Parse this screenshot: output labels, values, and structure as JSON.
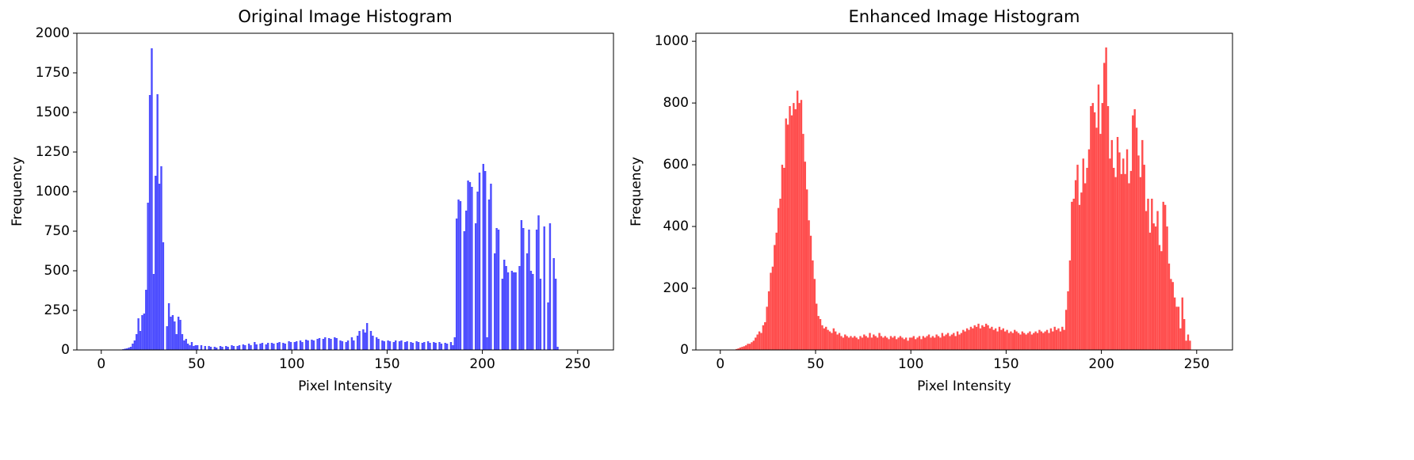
{
  "chart_data": [
    {
      "type": "histogram",
      "title": "Original Image Histogram",
      "xlabel": "Pixel Intensity",
      "ylabel": "Frequency",
      "color": "#4d4dff",
      "xlim": [
        -12.8,
        268.8
      ],
      "ylim": [
        0,
        2000
      ],
      "xticks": [
        0,
        50,
        100,
        150,
        200,
        250
      ],
      "yticks": [
        0,
        250,
        500,
        750,
        1000,
        1250,
        1500,
        1750,
        2000
      ],
      "bins": [
        0,
        1,
        2,
        3,
        4,
        5,
        6,
        7,
        8,
        9,
        10,
        11,
        12,
        13,
        14,
        15,
        16,
        17,
        18,
        19,
        20,
        21,
        22,
        23,
        24,
        25,
        26,
        27,
        28,
        29,
        30,
        31,
        32,
        33,
        34,
        35,
        36,
        37,
        38,
        39,
        40,
        41,
        42,
        43,
        44,
        45,
        46,
        47,
        48,
        49,
        50,
        51,
        52,
        53,
        54,
        55,
        56,
        57,
        58,
        59,
        60,
        61,
        62,
        63,
        64,
        65,
        66,
        67,
        68,
        69,
        70,
        71,
        72,
        73,
        74,
        75,
        76,
        77,
        78,
        79,
        80,
        81,
        82,
        83,
        84,
        85,
        86,
        87,
        88,
        89,
        90,
        91,
        92,
        93,
        94,
        95,
        96,
        97,
        98,
        99,
        100,
        101,
        102,
        103,
        104,
        105,
        106,
        107,
        108,
        109,
        110,
        111,
        112,
        113,
        114,
        115,
        116,
        117,
        118,
        119,
        120,
        121,
        122,
        123,
        124,
        125,
        126,
        127,
        128,
        129,
        130,
        131,
        132,
        133,
        134,
        135,
        136,
        137,
        138,
        139,
        140,
        141,
        142,
        143,
        144,
        145,
        146,
        147,
        148,
        149,
        150,
        151,
        152,
        153,
        154,
        155,
        156,
        157,
        158,
        159,
        160,
        161,
        162,
        163,
        164,
        165,
        166,
        167,
        168,
        169,
        170,
        171,
        172,
        173,
        174,
        175,
        176,
        177,
        178,
        179,
        180,
        181,
        182,
        183,
        184,
        185,
        186,
        187,
        188,
        189,
        190,
        191,
        192,
        193,
        194,
        195,
        196,
        197,
        198,
        199,
        200,
        201,
        202,
        203,
        204,
        205,
        206,
        207,
        208,
        209,
        210,
        211,
        212,
        213,
        214,
        215,
        216,
        217,
        218,
        219,
        220,
        221,
        222,
        223,
        224,
        225,
        226,
        227,
        228,
        229,
        230,
        231,
        232,
        233,
        234,
        235,
        236,
        237,
        238,
        239,
        240,
        241,
        242,
        243,
        244,
        245,
        246,
        247,
        248,
        249,
        250,
        251,
        252,
        253,
        254,
        255,
        256
      ],
      "counts": [
        0,
        0,
        0,
        0,
        0,
        0,
        0,
        0,
        0,
        0,
        0,
        5,
        8,
        10,
        15,
        20,
        40,
        60,
        100,
        200,
        120,
        220,
        230,
        380,
        930,
        1610,
        1905,
        480,
        1100,
        1615,
        1050,
        1160,
        680,
        0,
        150,
        295,
        210,
        220,
        180,
        100,
        210,
        190,
        100,
        60,
        70,
        40,
        30,
        50,
        25,
        30,
        30,
        0,
        30,
        0,
        25,
        0,
        25,
        20,
        0,
        20,
        15,
        0,
        25,
        20,
        0,
        25,
        20,
        0,
        30,
        25,
        0,
        25,
        30,
        0,
        35,
        30,
        0,
        40,
        30,
        0,
        50,
        35,
        0,
        40,
        45,
        0,
        35,
        45,
        0,
        45,
        40,
        0,
        45,
        50,
        0,
        45,
        40,
        0,
        55,
        50,
        0,
        50,
        55,
        0,
        60,
        50,
        0,
        65,
        60,
        0,
        65,
        60,
        0,
        70,
        75,
        0,
        70,
        80,
        0,
        75,
        70,
        0,
        80,
        75,
        0,
        60,
        55,
        0,
        50,
        60,
        0,
        80,
        60,
        0,
        90,
        120,
        0,
        130,
        110,
        170,
        0,
        120,
        90,
        0,
        80,
        70,
        0,
        60,
        55,
        0,
        60,
        55,
        0,
        50,
        60,
        0,
        55,
        60,
        0,
        50,
        55,
        0,
        50,
        45,
        0,
        55,
        50,
        0,
        45,
        50,
        0,
        55,
        45,
        0,
        50,
        45,
        0,
        50,
        40,
        0,
        45,
        40,
        0,
        50,
        30,
        80,
        830,
        950,
        940,
        0,
        750,
        880,
        1070,
        1060,
        1030,
        0,
        800,
        1000,
        1120,
        0,
        1175,
        1130,
        80,
        950,
        1050,
        0,
        610,
        770,
        760,
        0,
        450,
        570,
        530,
        490,
        0,
        500,
        490,
        490,
        0,
        530,
        820,
        770,
        0,
        610,
        760,
        500,
        480,
        0,
        760,
        850,
        450,
        0,
        780,
        0,
        300,
        800,
        0,
        580,
        450,
        20,
        0,
        0,
        0,
        0,
        0,
        0,
        0,
        0,
        0,
        0,
        0,
        0,
        0,
        0,
        0,
        0
      ]
    },
    {
      "type": "histogram",
      "title": "Enhanced Image Histogram",
      "xlabel": "Pixel Intensity",
      "ylabel": "Frequency",
      "color": "#ff4d4d",
      "xlim": [
        -12.8,
        268.8
      ],
      "ylim": [
        0,
        1026
      ],
      "xticks": [
        0,
        50,
        100,
        150,
        200,
        250
      ],
      "yticks": [
        0,
        200,
        400,
        600,
        800,
        1000
      ],
      "bins": [
        0,
        1,
        2,
        3,
        4,
        5,
        6,
        7,
        8,
        9,
        10,
        11,
        12,
        13,
        14,
        15,
        16,
        17,
        18,
        19,
        20,
        21,
        22,
        23,
        24,
        25,
        26,
        27,
        28,
        29,
        30,
        31,
        32,
        33,
        34,
        35,
        36,
        37,
        38,
        39,
        40,
        41,
        42,
        43,
        44,
        45,
        46,
        47,
        48,
        49,
        50,
        51,
        52,
        53,
        54,
        55,
        56,
        57,
        58,
        59,
        60,
        61,
        62,
        63,
        64,
        65,
        66,
        67,
        68,
        69,
        70,
        71,
        72,
        73,
        74,
        75,
        76,
        77,
        78,
        79,
        80,
        81,
        82,
        83,
        84,
        85,
        86,
        87,
        88,
        89,
        90,
        91,
        92,
        93,
        94,
        95,
        96,
        97,
        98,
        99,
        100,
        101,
        102,
        103,
        104,
        105,
        106,
        107,
        108,
        109,
        110,
        111,
        112,
        113,
        114,
        115,
        116,
        117,
        118,
        119,
        120,
        121,
        122,
        123,
        124,
        125,
        126,
        127,
        128,
        129,
        130,
        131,
        132,
        133,
        134,
        135,
        136,
        137,
        138,
        139,
        140,
        141,
        142,
        143,
        144,
        145,
        146,
        147,
        148,
        149,
        150,
        151,
        152,
        153,
        154,
        155,
        156,
        157,
        158,
        159,
        160,
        161,
        162,
        163,
        164,
        165,
        166,
        167,
        168,
        169,
        170,
        171,
        172,
        173,
        174,
        175,
        176,
        177,
        178,
        179,
        180,
        181,
        182,
        183,
        184,
        185,
        186,
        187,
        188,
        189,
        190,
        191,
        192,
        193,
        194,
        195,
        196,
        197,
        198,
        199,
        200,
        201,
        202,
        203,
        204,
        205,
        206,
        207,
        208,
        209,
        210,
        211,
        212,
        213,
        214,
        215,
        216,
        217,
        218,
        219,
        220,
        221,
        222,
        223,
        224,
        225,
        226,
        227,
        228,
        229,
        230,
        231,
        232,
        233,
        234,
        235,
        236,
        237,
        238,
        239,
        240,
        241,
        242,
        243,
        244,
        245,
        246,
        247,
        248,
        249,
        250,
        251,
        252,
        253,
        254,
        255,
        256
      ],
      "counts": [
        0,
        0,
        0,
        0,
        0,
        0,
        0,
        0,
        3,
        5,
        8,
        10,
        12,
        15,
        20,
        20,
        25,
        30,
        40,
        50,
        60,
        55,
        80,
        90,
        140,
        190,
        250,
        270,
        340,
        380,
        460,
        490,
        600,
        590,
        750,
        730,
        790,
        760,
        800,
        780,
        840,
        800,
        810,
        700,
        610,
        520,
        420,
        370,
        290,
        230,
        150,
        110,
        100,
        80,
        70,
        75,
        65,
        60,
        55,
        70,
        60,
        50,
        55,
        45,
        40,
        50,
        45,
        40,
        45,
        40,
        45,
        40,
        35,
        45,
        40,
        50,
        45,
        40,
        55,
        40,
        50,
        45,
        40,
        55,
        45,
        40,
        45,
        40,
        35,
        45,
        40,
        45,
        35,
        40,
        45,
        40,
        35,
        40,
        30,
        40,
        40,
        45,
        35,
        40,
        45,
        35,
        45,
        40,
        45,
        50,
        40,
        45,
        40,
        50,
        45,
        40,
        55,
        45,
        50,
        55,
        45,
        50,
        55,
        45,
        60,
        50,
        55,
        65,
        60,
        70,
        65,
        75,
        70,
        80,
        75,
        85,
        70,
        80,
        75,
        85,
        80,
        70,
        75,
        65,
        70,
        60,
        75,
        65,
        70,
        60,
        65,
        55,
        60,
        55,
        65,
        60,
        55,
        50,
        60,
        55,
        50,
        55,
        60,
        50,
        55,
        60,
        55,
        65,
        60,
        55,
        60,
        65,
        55,
        70,
        60,
        75,
        65,
        70,
        60,
        75,
        65,
        130,
        190,
        290,
        480,
        490,
        550,
        600,
        470,
        510,
        620,
        540,
        590,
        650,
        790,
        800,
        770,
        720,
        860,
        700,
        800,
        930,
        980,
        790,
        620,
        680,
        590,
        560,
        690,
        640,
        570,
        620,
        570,
        650,
        540,
        580,
        760,
        780,
        720,
        630,
        560,
        680,
        600,
        450,
        490,
        380,
        490,
        410,
        400,
        450,
        340,
        320,
        480,
        470,
        400,
        280,
        230,
        220,
        170,
        140,
        140,
        70,
        170,
        100,
        30,
        50,
        30,
        0,
        0,
        0,
        0,
        0,
        0,
        0,
        0,
        0
      ]
    }
  ]
}
